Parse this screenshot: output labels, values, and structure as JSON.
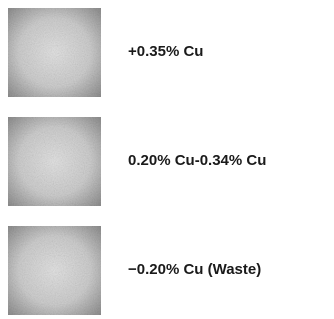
{
  "legend": {
    "items": [
      {
        "label": "+0.35% Cu"
      },
      {
        "label": "0.20% Cu-0.34% Cu"
      },
      {
        "label": "−0.20% Cu (Waste)"
      }
    ]
  }
}
